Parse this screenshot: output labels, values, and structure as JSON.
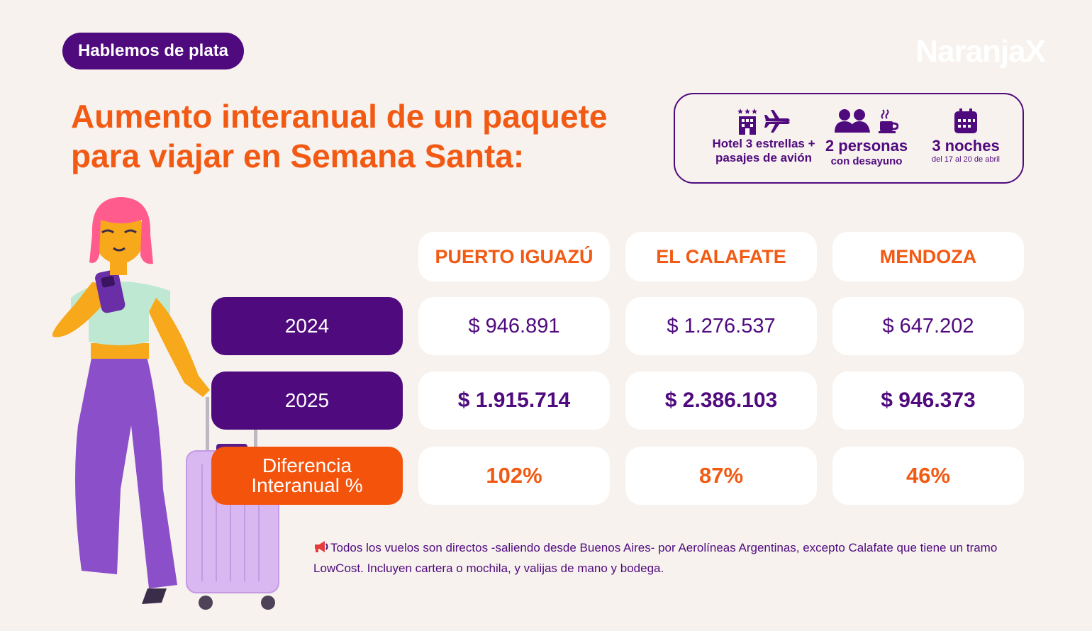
{
  "tag": "Hablemos de plata",
  "brand": "NaranjaX",
  "title": "Aumento interanual de un paquete para viajar en Semana Santa:",
  "package": {
    "hotel_line1": "Hotel 3 estrellas +",
    "hotel_line2": "pasajes de avión",
    "people_main": "2 personas",
    "people_sub": "con desayuno",
    "nights_main": "3 noches",
    "nights_sub": "del 17 al 20 de abril"
  },
  "table": {
    "columns": [
      "PUERTO IGUAZÚ",
      "EL CALAFATE",
      "MENDOZA"
    ],
    "rows": [
      {
        "label": "2024",
        "values": [
          "$ 946.891",
          "$ 1.276.537",
          "$ 647.202"
        ]
      },
      {
        "label": "2025",
        "values": [
          "$ 1.915.714",
          "$ 2.386.103",
          "$ 946.373"
        ]
      },
      {
        "label_line1": "Diferencia",
        "label_line2": "Interanual %",
        "values": [
          "102%",
          "87%",
          "46%"
        ]
      }
    ]
  },
  "footnote": {
    "icon": "megaphone-icon",
    "text": "Todos los vuelos son directos -saliendo desde Buenos Aires- por Aerolíneas Argentinas, excepto Calafate que tiene un tramo LowCost. Incluyen cartera o mochila, y valijas de mano y bodega."
  },
  "colors": {
    "purple": "#4f0a7e",
    "orange": "#f25a14",
    "background": "#f7f2ee"
  }
}
